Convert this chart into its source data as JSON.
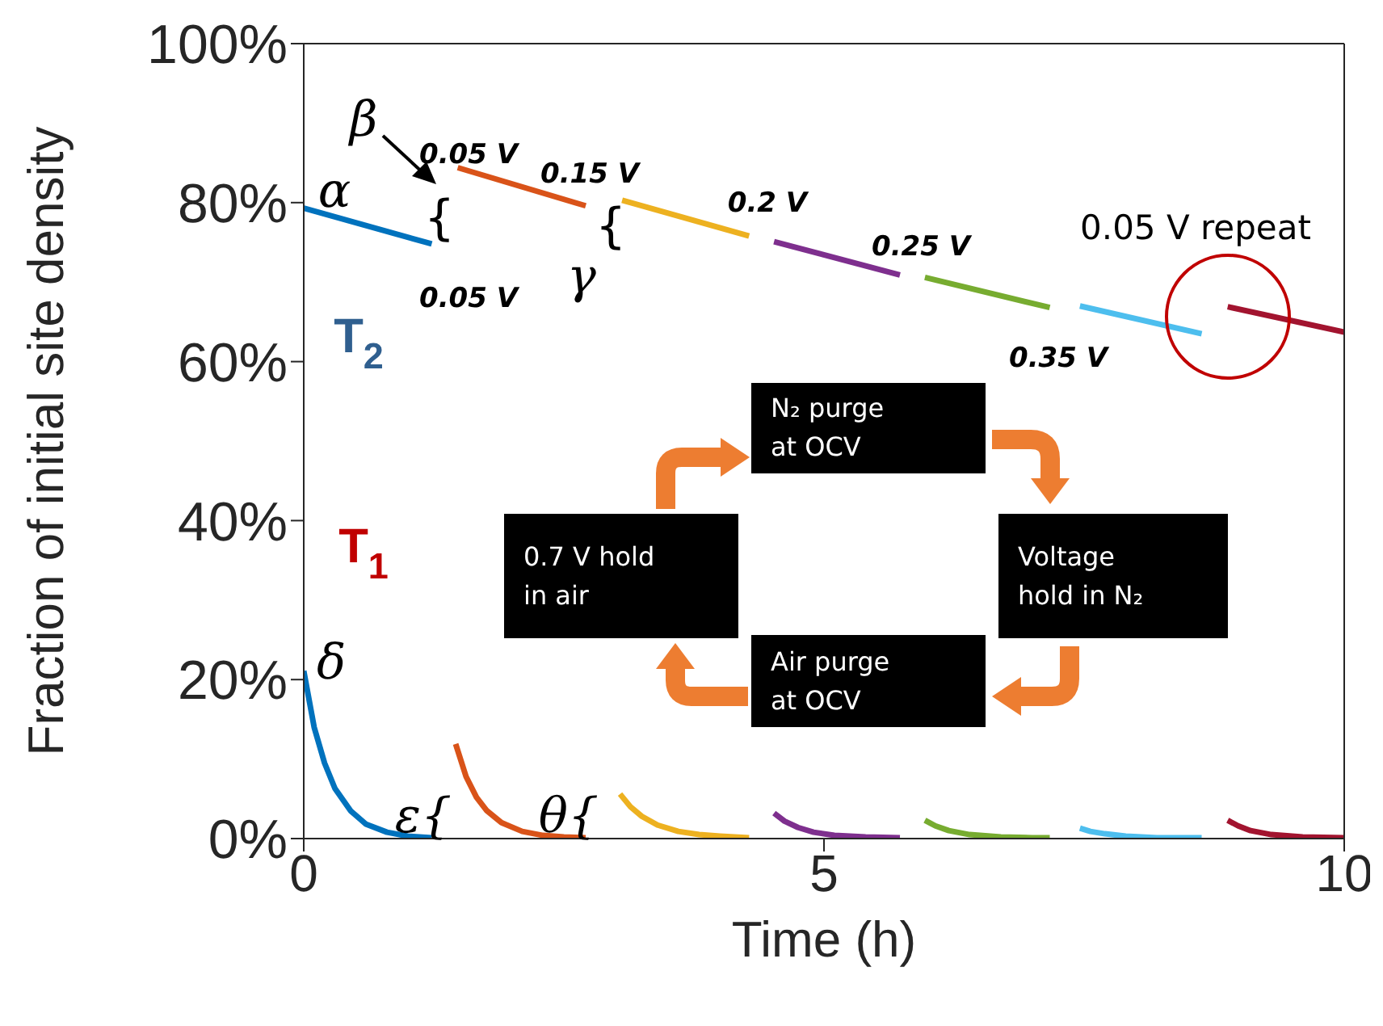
{
  "chart_data": {
    "type": "line",
    "xlabel": "Time (h)",
    "ylabel": "Fraction of initial site density",
    "xlim": [
      0,
      10
    ],
    "xticks": [
      0,
      5,
      10
    ],
    "ylim": [
      0,
      100
    ],
    "yticks": [
      {
        "value": 0,
        "label": "0%"
      },
      {
        "value": 20,
        "label": "20%"
      },
      {
        "value": 40,
        "label": "40%"
      },
      {
        "value": 60,
        "label": "60%"
      },
      {
        "value": 80,
        "label": "80%"
      },
      {
        "value": 100,
        "label": "100%"
      }
    ],
    "marker": "none",
    "line_style": "solid",
    "series": [
      {
        "color": "#0072bd",
        "x": [
          0,
          1.23
        ],
        "values": [
          79.3,
          74.8
        ]
      },
      {
        "color": "#d95319",
        "x": [
          1.48,
          2.71
        ],
        "values": [
          84.4,
          79.6
        ]
      },
      {
        "color": "#edb120",
        "x": [
          3.06,
          4.28
        ],
        "values": [
          80.3,
          75.8
        ]
      },
      {
        "color": "#7e2f8e",
        "x": [
          4.52,
          5.73
        ],
        "values": [
          75.1,
          70.9
        ]
      },
      {
        "color": "#77ac30",
        "x": [
          5.97,
          7.17
        ],
        "values": [
          70.6,
          66.8
        ]
      },
      {
        "color": "#4dbeee",
        "x": [
          7.46,
          8.63
        ],
        "values": [
          67.0,
          63.5
        ]
      },
      {
        "color": "#a2142f",
        "x": [
          8.88,
          10
        ],
        "values": [
          66.9,
          63.7
        ]
      },
      {
        "color": "#0072bd",
        "x": [
          0,
          0.1,
          0.2,
          0.3,
          0.45,
          0.6,
          0.8,
          1.0,
          1.23
        ],
        "values": [
          21.1,
          14,
          9.5,
          6.3,
          3.5,
          1.8,
          0.8,
          0.3,
          0.1
        ]
      },
      {
        "color": "#d95319",
        "x": [
          1.46,
          1.56,
          1.66,
          1.76,
          1.9,
          2.1,
          2.3,
          2.5,
          2.71
        ],
        "values": [
          11.9,
          7.8,
          5.2,
          3.5,
          2.0,
          0.9,
          0.4,
          0.2,
          0.1
        ]
      },
      {
        "color": "#edb120",
        "x": [
          3.04,
          3.14,
          3.25,
          3.4,
          3.6,
          3.8,
          4.0,
          4.28
        ],
        "values": [
          5.6,
          4.0,
          2.8,
          1.7,
          0.9,
          0.5,
          0.3,
          0.1
        ]
      },
      {
        "color": "#7e2f8e",
        "x": [
          4.52,
          4.62,
          4.75,
          4.9,
          5.1,
          5.4,
          5.73
        ],
        "values": [
          3.2,
          2.2,
          1.4,
          0.8,
          0.4,
          0.2,
          0.1
        ]
      },
      {
        "color": "#77ac30",
        "x": [
          5.97,
          6.07,
          6.2,
          6.4,
          6.7,
          7.0,
          7.17
        ],
        "values": [
          2.3,
          1.6,
          1.0,
          0.5,
          0.2,
          0.1,
          0.1
        ]
      },
      {
        "color": "#4dbeee",
        "x": [
          7.46,
          7.56,
          7.7,
          7.9,
          8.2,
          8.63
        ],
        "values": [
          1.3,
          0.9,
          0.6,
          0.3,
          0.1,
          0.1
        ]
      },
      {
        "color": "#a2142f",
        "x": [
          8.88,
          8.98,
          9.1,
          9.3,
          9.6,
          10
        ],
        "values": [
          2.3,
          1.6,
          1.0,
          0.5,
          0.2,
          0.1
        ]
      }
    ],
    "annotations": [
      "α",
      "β",
      "0.05 V",
      "{",
      "0.05 V",
      "0.15 V",
      "γ",
      "{",
      "0.2 V",
      "0.25 V",
      "0.35 V",
      "0.05 V repeat",
      "T$_{2}$",
      "T$_{1}$",
      "δ",
      "ε{",
      "θ{",
      "N₂ purge\nat OCV",
      "0.7 V hold\nin air",
      "Voltage\nhold in N₂",
      "Air purge\nat OCV"
    ]
  }
}
